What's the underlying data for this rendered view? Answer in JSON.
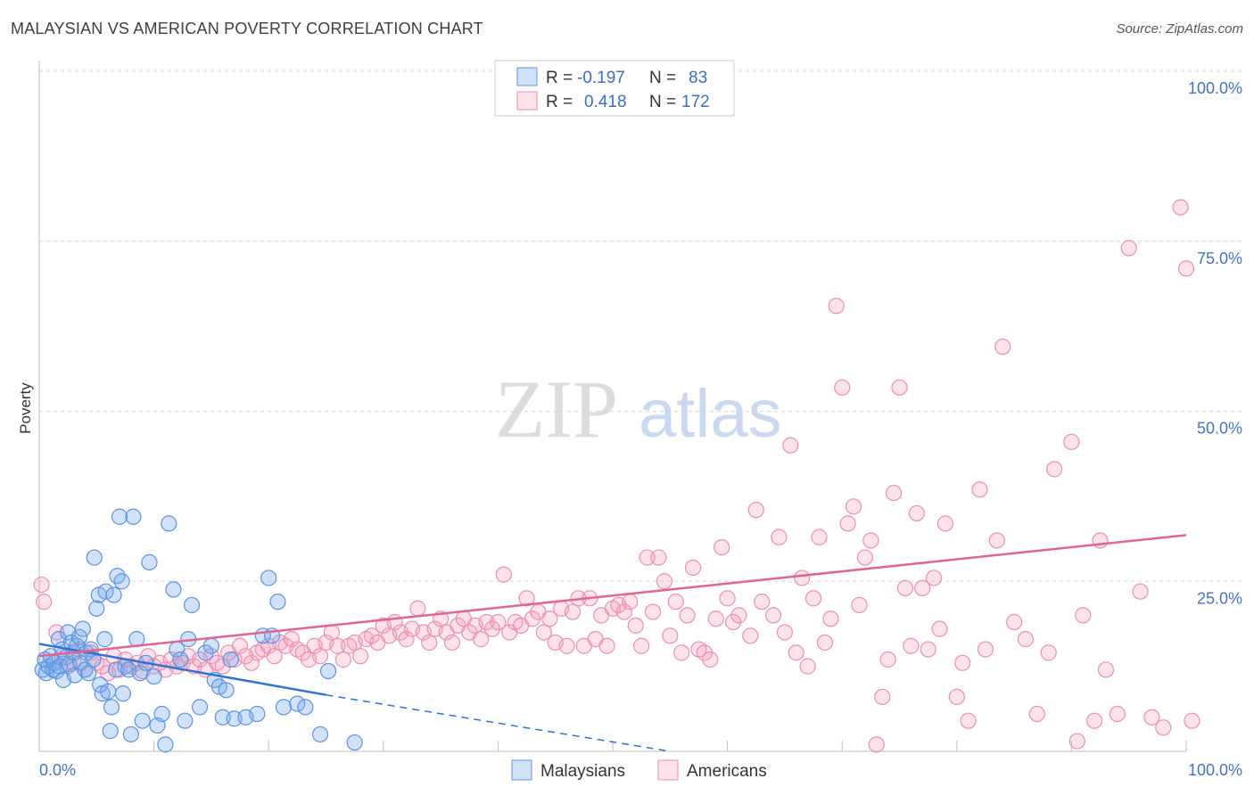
{
  "title": "MALAYSIAN VS AMERICAN POVERTY CORRELATION CHART",
  "source": "Source: ZipAtlas.com",
  "watermark": {
    "zip": "ZIP",
    "atlas": "atlas"
  },
  "colors": {
    "malaysian_fill": "rgba(120,170,235,0.35)",
    "malaysian_stroke": "#5b95e0",
    "malaysian_line": "#2f72d6",
    "american_fill": "rgba(245,160,190,0.30)",
    "american_stroke": "#ec8fb0",
    "american_line": "#e2648f",
    "axis_label": "#4472c4"
  },
  "legend": {
    "rows": [
      {
        "r_label": "R =",
        "r_value": "-0.197",
        "n_label": "N =",
        "n_value": "83"
      },
      {
        "r_label": "R =",
        "r_value": "0.418",
        "n_label": "N =",
        "n_value": "172"
      }
    ]
  },
  "chart_data": {
    "type": "scatter",
    "title": "MALAYSIAN VS AMERICAN POVERTY CORRELATION CHART",
    "xlabel": "",
    "ylabel": "Poverty",
    "xlim": [
      0,
      100
    ],
    "ylim": [
      0,
      100
    ],
    "x_tick_labels": [
      "0.0%",
      "100.0%"
    ],
    "y_ticks": [
      {
        "value": 25,
        "label": "25.0%"
      },
      {
        "value": 50,
        "label": "50.0%"
      },
      {
        "value": 75,
        "label": "75.0%"
      },
      {
        "value": 100,
        "label": "100.0%"
      }
    ],
    "series": [
      {
        "name": "Malaysians",
        "R": -0.197,
        "N": 83,
        "trend": {
          "x0": 0,
          "y0": 15.8,
          "x1": 25,
          "y1": 8.3,
          "dashed_to_x": 55,
          "dashed_to_y": 0
        },
        "points": [
          [
            0.3,
            12.0
          ],
          [
            0.5,
            13.5
          ],
          [
            0.6,
            11.5
          ],
          [
            0.8,
            12.5
          ],
          [
            1.0,
            14.0
          ],
          [
            1.2,
            12.0
          ],
          [
            1.3,
            13.0
          ],
          [
            1.5,
            11.8
          ],
          [
            1.7,
            16.5
          ],
          [
            1.8,
            12.5
          ],
          [
            2.0,
            15.0
          ],
          [
            2.1,
            10.5
          ],
          [
            2.3,
            13.8
          ],
          [
            2.5,
            17.5
          ],
          [
            2.6,
            12.8
          ],
          [
            2.8,
            16.0
          ],
          [
            3.0,
            14.5
          ],
          [
            3.1,
            11.2
          ],
          [
            3.3,
            15.5
          ],
          [
            3.5,
            16.8
          ],
          [
            3.6,
            13.0
          ],
          [
            3.8,
            18.0
          ],
          [
            4.0,
            12.0
          ],
          [
            4.1,
            14.5
          ],
          [
            4.3,
            11.5
          ],
          [
            4.5,
            15.0
          ],
          [
            4.7,
            13.5
          ],
          [
            4.8,
            28.5
          ],
          [
            5.0,
            21.0
          ],
          [
            5.2,
            23.0
          ],
          [
            5.3,
            9.8
          ],
          [
            5.5,
            8.5
          ],
          [
            5.7,
            16.5
          ],
          [
            5.8,
            23.5
          ],
          [
            6.0,
            8.8
          ],
          [
            6.2,
            3.0
          ],
          [
            6.3,
            6.5
          ],
          [
            6.5,
            23.0
          ],
          [
            6.7,
            12.0
          ],
          [
            6.8,
            25.8
          ],
          [
            7.0,
            34.5
          ],
          [
            7.2,
            25.0
          ],
          [
            7.3,
            8.5
          ],
          [
            7.5,
            12.5
          ],
          [
            7.8,
            12.0
          ],
          [
            8.0,
            2.5
          ],
          [
            8.2,
            34.5
          ],
          [
            8.5,
            16.5
          ],
          [
            8.8,
            11.5
          ],
          [
            9.0,
            4.5
          ],
          [
            9.3,
            13.0
          ],
          [
            9.6,
            27.8
          ],
          [
            10.0,
            11.0
          ],
          [
            10.3,
            3.8
          ],
          [
            10.7,
            5.5
          ],
          [
            11.0,
            1.0
          ],
          [
            11.3,
            33.5
          ],
          [
            11.7,
            23.8
          ],
          [
            12.0,
            15.0
          ],
          [
            12.3,
            13.5
          ],
          [
            12.7,
            4.5
          ],
          [
            13.0,
            16.5
          ],
          [
            13.3,
            21.5
          ],
          [
            14.0,
            6.5
          ],
          [
            14.5,
            14.5
          ],
          [
            15.0,
            15.5
          ],
          [
            15.3,
            10.5
          ],
          [
            15.7,
            9.5
          ],
          [
            16.0,
            5.0
          ],
          [
            16.3,
            9.0
          ],
          [
            16.7,
            13.5
          ],
          [
            17.0,
            4.8
          ],
          [
            18.0,
            5.0
          ],
          [
            19.0,
            5.5
          ],
          [
            19.5,
            17.0
          ],
          [
            20.0,
            25.5
          ],
          [
            20.3,
            17.0
          ],
          [
            20.8,
            22.0
          ],
          [
            21.3,
            6.5
          ],
          [
            22.5,
            7.0
          ],
          [
            23.2,
            6.5
          ],
          [
            24.5,
            2.5
          ],
          [
            25.2,
            11.8
          ],
          [
            27.5,
            1.3
          ]
        ]
      },
      {
        "name": "Americans",
        "R": 0.418,
        "N": 172,
        "trend": {
          "x0": 0,
          "y0": 14.0,
          "x1": 100,
          "y1": 31.8
        },
        "points": [
          [
            0.2,
            24.5
          ],
          [
            0.4,
            22.0
          ],
          [
            1.5,
            17.5
          ],
          [
            2.0,
            14.0
          ],
          [
            2.5,
            12.5
          ],
          [
            3.0,
            13.0
          ],
          [
            3.5,
            15.0
          ],
          [
            4.0,
            12.0
          ],
          [
            4.5,
            14.5
          ],
          [
            5.0,
            13.0
          ],
          [
            5.5,
            12.5
          ],
          [
            6.0,
            11.5
          ],
          [
            6.5,
            14.0
          ],
          [
            7.0,
            12.0
          ],
          [
            7.5,
            13.5
          ],
          [
            8.0,
            12.5
          ],
          [
            8.5,
            13.0
          ],
          [
            9.0,
            11.8
          ],
          [
            9.5,
            14.0
          ],
          [
            10.0,
            12.5
          ],
          [
            10.5,
            13.0
          ],
          [
            11.0,
            12.0
          ],
          [
            11.5,
            13.5
          ],
          [
            12.0,
            12.5
          ],
          [
            12.5,
            13.0
          ],
          [
            13.0,
            14.0
          ],
          [
            13.5,
            12.5
          ],
          [
            14.0,
            13.5
          ],
          [
            14.5,
            12.0
          ],
          [
            15.0,
            14.0
          ],
          [
            15.5,
            13.0
          ],
          [
            16.0,
            12.5
          ],
          [
            16.5,
            14.5
          ],
          [
            17.0,
            13.5
          ],
          [
            17.5,
            15.5
          ],
          [
            18.0,
            14.0
          ],
          [
            18.5,
            13.0
          ],
          [
            19.0,
            14.5
          ],
          [
            19.5,
            15.0
          ],
          [
            20.0,
            15.5
          ],
          [
            20.5,
            14.0
          ],
          [
            21.0,
            16.0
          ],
          [
            21.5,
            15.5
          ],
          [
            22.0,
            16.5
          ],
          [
            22.5,
            15.0
          ],
          [
            23.0,
            14.5
          ],
          [
            23.5,
            13.5
          ],
          [
            24.0,
            15.5
          ],
          [
            24.5,
            14.0
          ],
          [
            25.0,
            16.0
          ],
          [
            25.5,
            17.5
          ],
          [
            26.0,
            15.5
          ],
          [
            26.5,
            13.5
          ],
          [
            27.0,
            15.5
          ],
          [
            27.5,
            16.0
          ],
          [
            28.0,
            14.0
          ],
          [
            28.5,
            16.5
          ],
          [
            29.0,
            17.0
          ],
          [
            29.5,
            16.0
          ],
          [
            30.0,
            18.5
          ],
          [
            30.5,
            17.0
          ],
          [
            31.0,
            19.0
          ],
          [
            31.5,
            17.5
          ],
          [
            32.0,
            16.5
          ],
          [
            32.5,
            18.0
          ],
          [
            33.0,
            21.0
          ],
          [
            33.5,
            17.5
          ],
          [
            34.0,
            16.0
          ],
          [
            34.5,
            18.0
          ],
          [
            35.0,
            19.5
          ],
          [
            35.5,
            17.5
          ],
          [
            36.0,
            16.0
          ],
          [
            36.5,
            18.5
          ],
          [
            37.0,
            19.5
          ],
          [
            37.5,
            17.5
          ],
          [
            38.0,
            18.5
          ],
          [
            38.5,
            16.5
          ],
          [
            39.0,
            19.0
          ],
          [
            39.5,
            18.0
          ],
          [
            40.0,
            19.0
          ],
          [
            40.5,
            26.0
          ],
          [
            41.0,
            17.5
          ],
          [
            41.5,
            19.0
          ],
          [
            42.0,
            18.5
          ],
          [
            42.5,
            22.5
          ],
          [
            43.0,
            19.5
          ],
          [
            43.5,
            20.5
          ],
          [
            44.0,
            17.5
          ],
          [
            44.5,
            19.5
          ],
          [
            45.0,
            16.0
          ],
          [
            45.5,
            21.0
          ],
          [
            46.0,
            15.5
          ],
          [
            46.5,
            20.5
          ],
          [
            47.0,
            22.5
          ],
          [
            47.5,
            15.5
          ],
          [
            48.0,
            22.5
          ],
          [
            48.5,
            16.5
          ],
          [
            49.0,
            20.0
          ],
          [
            49.5,
            15.5
          ],
          [
            50.0,
            21.0
          ],
          [
            50.5,
            21.5
          ],
          [
            51.0,
            20.5
          ],
          [
            51.5,
            22.0
          ],
          [
            52.0,
            18.5
          ],
          [
            52.5,
            15.5
          ],
          [
            53.0,
            28.5
          ],
          [
            53.5,
            20.5
          ],
          [
            54.0,
            28.5
          ],
          [
            54.5,
            25.0
          ],
          [
            55.0,
            17.0
          ],
          [
            55.5,
            22.0
          ],
          [
            56.0,
            14.5
          ],
          [
            56.5,
            20.0
          ],
          [
            57.0,
            27.0
          ],
          [
            57.5,
            15.0
          ],
          [
            58.0,
            14.5
          ],
          [
            58.5,
            13.5
          ],
          [
            59.0,
            19.5
          ],
          [
            59.5,
            30.0
          ],
          [
            60.0,
            22.5
          ],
          [
            60.5,
            19.0
          ],
          [
            61.0,
            20.0
          ],
          [
            62.0,
            17.0
          ],
          [
            62.5,
            35.5
          ],
          [
            63.0,
            22.0
          ],
          [
            64.0,
            20.0
          ],
          [
            64.5,
            31.5
          ],
          [
            65.0,
            17.5
          ],
          [
            65.5,
            45.0
          ],
          [
            66.0,
            14.5
          ],
          [
            66.5,
            25.5
          ],
          [
            67.0,
            12.5
          ],
          [
            67.5,
            22.5
          ],
          [
            68.0,
            31.5
          ],
          [
            68.5,
            16.0
          ],
          [
            69.0,
            19.5
          ],
          [
            69.5,
            65.5
          ],
          [
            70.0,
            53.5
          ],
          [
            70.5,
            33.5
          ],
          [
            71.0,
            36.0
          ],
          [
            71.5,
            21.5
          ],
          [
            72.0,
            28.5
          ],
          [
            72.5,
            31.0
          ],
          [
            73.0,
            1.0
          ],
          [
            73.5,
            8.0
          ],
          [
            74.0,
            13.5
          ],
          [
            74.5,
            38.0
          ],
          [
            75.0,
            53.5
          ],
          [
            75.5,
            24.0
          ],
          [
            76.0,
            15.5
          ],
          [
            76.5,
            35.0
          ],
          [
            77.0,
            24.0
          ],
          [
            77.5,
            15.0
          ],
          [
            78.0,
            25.5
          ],
          [
            78.5,
            18.0
          ],
          [
            79.0,
            33.5
          ],
          [
            80.0,
            8.0
          ],
          [
            80.5,
            13.0
          ],
          [
            81.0,
            4.5
          ],
          [
            82.0,
            38.5
          ],
          [
            82.5,
            15.0
          ],
          [
            83.5,
            31.0
          ],
          [
            84.0,
            59.5
          ],
          [
            85.0,
            19.0
          ],
          [
            86.0,
            16.5
          ],
          [
            87.0,
            5.5
          ],
          [
            88.0,
            14.5
          ],
          [
            88.5,
            41.5
          ],
          [
            90.0,
            45.5
          ],
          [
            90.5,
            1.5
          ],
          [
            91.0,
            20.0
          ],
          [
            92.0,
            4.5
          ],
          [
            92.5,
            31.0
          ],
          [
            93.0,
            12.0
          ],
          [
            94.0,
            5.5
          ],
          [
            95.0,
            74.0
          ],
          [
            96.0,
            23.5
          ],
          [
            97.0,
            5.0
          ],
          [
            98.0,
            3.5
          ],
          [
            99.5,
            80.0
          ],
          [
            100.0,
            71.0
          ],
          [
            100.5,
            4.5
          ]
        ]
      }
    ]
  },
  "bottom_legend": [
    {
      "label": "Malaysians"
    },
    {
      "label": "Americans"
    }
  ]
}
